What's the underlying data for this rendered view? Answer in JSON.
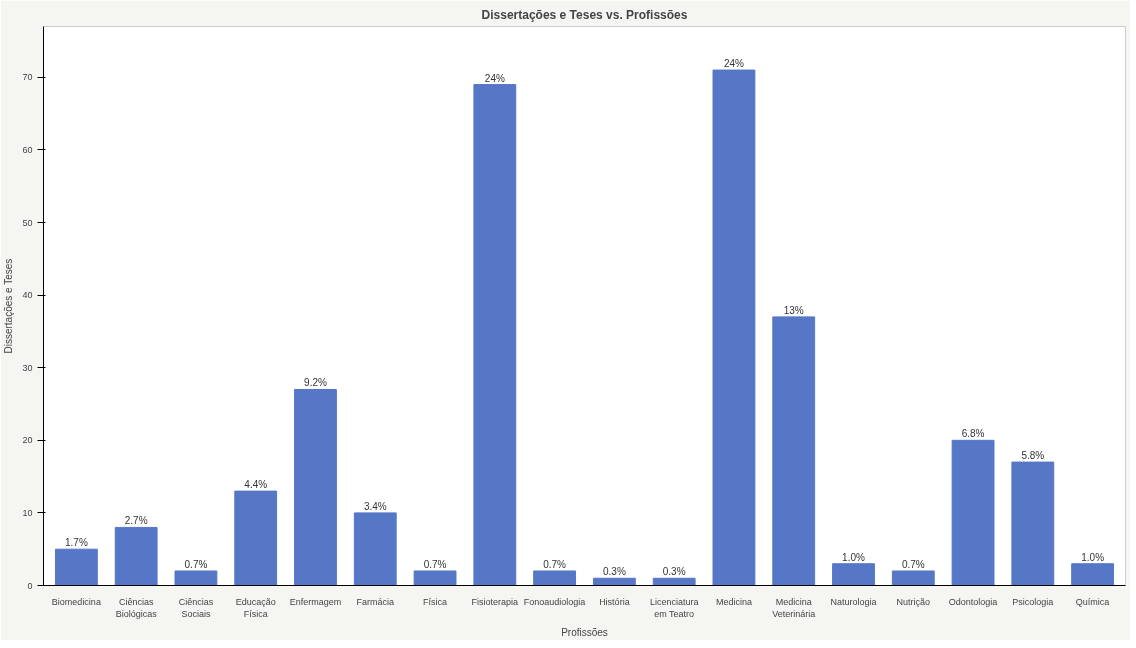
{
  "chart_data": {
    "type": "bar",
    "title": "Dissertações e Teses vs. Profissões",
    "xlabel": "Profissões",
    "ylabel": "Dissertações e Teses",
    "categories": [
      "Biomedicina",
      "Ciências Biológicas",
      "Ciências Sociais",
      "Educação Física",
      "Enfermagem",
      "Farmácia",
      "Física",
      "Fisioterapia",
      "Fonoaudiologia",
      "História",
      "Licenciatura em Teatro",
      "Medicina",
      "Medicina Veterinária",
      "Naturologia",
      "Nutrição",
      "Odontologia",
      "Psicologia",
      "Química"
    ],
    "values": [
      5,
      8,
      2,
      13,
      27,
      10,
      2,
      69,
      2,
      1,
      1,
      71,
      37,
      3,
      2,
      20,
      17,
      3
    ],
    "annotations": [
      {
        "text": "1.7%",
        "x": "Biomedicina",
        "y": 5
      },
      {
        "text": "2.7%",
        "x": "Ciências Biológicas",
        "y": 8
      },
      {
        "text": "0.7%",
        "x": "Ciências Sociais",
        "y": 2
      },
      {
        "text": "4.4%",
        "x": "Educação Física",
        "y": 13
      },
      {
        "text": "9.2%",
        "x": "Enfermagem",
        "y": 27
      },
      {
        "text": "3.4%",
        "x": "Farmácia",
        "y": 10
      },
      {
        "text": "0.7%",
        "x": "Física",
        "y": 2
      },
      {
        "text": "24%",
        "x": "Fisioterapia",
        "y": 69
      },
      {
        "text": "0.7%",
        "x": "Fonoaudiologia",
        "y": 2
      },
      {
        "text": "0.3%",
        "x": "História",
        "y": 1
      },
      {
        "text": "0.3%",
        "x": "Licenciatura em Teatro",
        "y": 1
      },
      {
        "text": "24%",
        "x": "Medicina",
        "y": 71
      },
      {
        "text": "13%",
        "x": "Medicina Veterinária",
        "y": 37
      },
      {
        "text": "1.0%",
        "x": "Naturologia",
        "y": 3
      },
      {
        "text": "0.7%",
        "x": "Nutrição",
        "y": 2
      },
      {
        "text": "6.8%",
        "x": "Odontologia",
        "y": 20
      },
      {
        "text": "5.8%",
        "x": "Psicologia",
        "y": 17
      },
      {
        "text": "1.0%",
        "x": "Química",
        "y": 3
      }
    ],
    "color": "#5677c6",
    "ylim": [
      0,
      77
    ],
    "yticks": [
      0,
      10,
      20,
      30,
      40,
      50,
      60,
      70
    ],
    "grid": false
  }
}
